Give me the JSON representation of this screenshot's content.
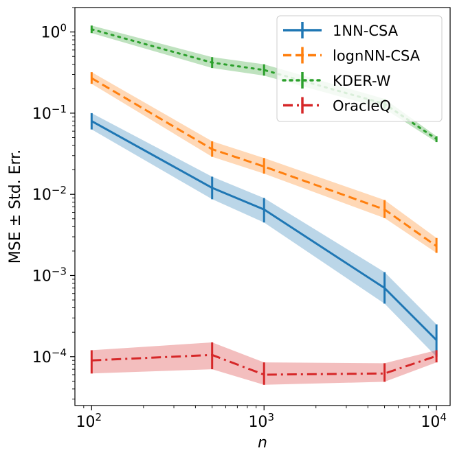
{
  "chart_data": {
    "type": "line",
    "title": "",
    "xlabel": "n",
    "ylabel": "MSE ± Std. Err.",
    "xscale": "log",
    "yscale": "log",
    "xlim": [
      80,
      12000
    ],
    "ylim": [
      2.5e-05,
      2.0
    ],
    "x": [
      100,
      500,
      1000,
      5000,
      10000
    ],
    "x_ticks": [
      {
        "value": 100,
        "base": "10",
        "exp": "2"
      },
      {
        "value": 1000,
        "base": "10",
        "exp": "3"
      },
      {
        "value": 10000,
        "base": "10",
        "exp": "4"
      }
    ],
    "y_ticks": [
      {
        "value": 0.0001,
        "base": "10",
        "exp": "−4"
      },
      {
        "value": 0.001,
        "base": "10",
        "exp": "−3"
      },
      {
        "value": 0.01,
        "base": "10",
        "exp": "−2"
      },
      {
        "value": 0.1,
        "base": "10",
        "exp": "−1"
      },
      {
        "value": 1,
        "base": "10",
        "exp": "0"
      }
    ],
    "legend_position": "top-right",
    "series": [
      {
        "name": "1NN-CSA",
        "color": "#1f77b4",
        "linestyle": "solid",
        "values": [
          0.08,
          0.012,
          0.0065,
          0.0007,
          0.00016
        ],
        "lower": [
          0.063,
          0.0087,
          0.0045,
          0.00045,
          0.0001
        ],
        "upper": [
          0.1,
          0.0165,
          0.009,
          0.0011,
          0.00025
        ]
      },
      {
        "name": "lognNN-CSA",
        "color": "#ff7f0e",
        "linestyle": "dashed",
        "values": [
          0.27,
          0.036,
          0.022,
          0.0065,
          0.0023
        ],
        "lower": [
          0.23,
          0.029,
          0.018,
          0.0051,
          0.0019
        ],
        "upper": [
          0.32,
          0.045,
          0.028,
          0.0085,
          0.0029
        ]
      },
      {
        "name": "KDER-W",
        "color": "#2ca02c",
        "linestyle": "dotted",
        "values": [
          1.08,
          0.42,
          0.34,
          0.13,
          0.048
        ],
        "lower": [
          0.97,
          0.36,
          0.29,
          0.113,
          0.044
        ],
        "upper": [
          1.2,
          0.49,
          0.4,
          0.15,
          0.052
        ]
      },
      {
        "name": "OracleQ",
        "color": "#d62728",
        "linestyle": "dashdot",
        "values": [
          9e-05,
          0.000105,
          6e-05,
          6.2e-05,
          0.000102
        ],
        "lower": [
          6.2e-05,
          7e-05,
          4.5e-05,
          4.9e-05,
          8.5e-05
        ],
        "upper": [
          0.00012,
          0.00015,
          8.5e-05,
          8.3e-05,
          0.00012
        ]
      }
    ]
  }
}
